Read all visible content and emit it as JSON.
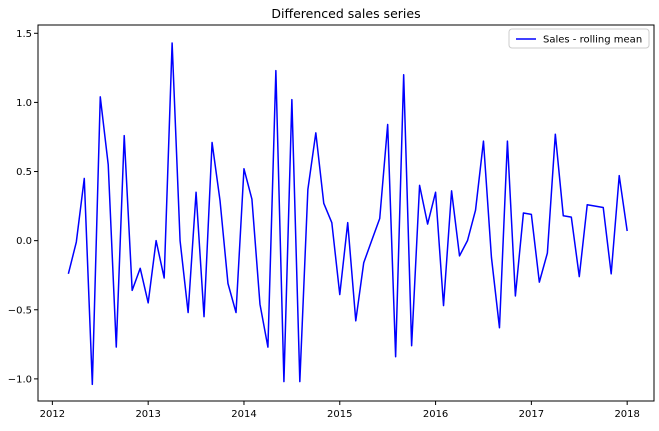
{
  "chart_data": {
    "type": "line",
    "title": "Differenced sales series",
    "xlabel": "",
    "ylabel": "",
    "xlim": [
      2011.85,
      2018.28
    ],
    "ylim": [
      -1.16,
      1.56
    ],
    "x_ticks": [
      2012,
      2013,
      2014,
      2015,
      2016,
      2017,
      2018
    ],
    "x_tick_labels": [
      "2012",
      "2013",
      "2014",
      "2015",
      "2016",
      "2017",
      "2018"
    ],
    "y_ticks": [
      -1.0,
      -0.5,
      0.0,
      0.5,
      1.0,
      1.5
    ],
    "y_tick_labels": [
      "−1.0",
      "−0.5",
      "0.0",
      "0.5",
      "1.0",
      "1.5"
    ],
    "grid": false,
    "legend": {
      "position": "top-right",
      "entries": [
        "Sales - rolling mean"
      ]
    },
    "series": [
      {
        "name": "Sales - rolling mean",
        "color": "#0000ff",
        "x": [
          2012.167,
          2012.25,
          2012.333,
          2012.417,
          2012.5,
          2012.583,
          2012.667,
          2012.75,
          2012.833,
          2012.917,
          2013.0,
          2013.083,
          2013.167,
          2013.25,
          2013.333,
          2013.417,
          2013.5,
          2013.583,
          2013.667,
          2013.75,
          2013.833,
          2013.917,
          2014.0,
          2014.083,
          2014.167,
          2014.25,
          2014.333,
          2014.417,
          2014.5,
          2014.583,
          2014.667,
          2014.75,
          2014.833,
          2014.917,
          2015.0,
          2015.083,
          2015.167,
          2015.25,
          2015.333,
          2015.417,
          2015.5,
          2015.583,
          2015.667,
          2015.75,
          2015.833,
          2015.917,
          2016.0,
          2016.083,
          2016.167,
          2016.25,
          2016.333,
          2016.417,
          2016.5,
          2016.583,
          2016.667,
          2016.75,
          2016.833,
          2016.917,
          2017.0,
          2017.083,
          2017.167,
          2017.25,
          2017.333,
          2017.417,
          2017.5,
          2017.583,
          2017.667,
          2017.75,
          2017.833,
          2017.917,
          2018.0
        ],
        "y": [
          -0.24,
          -0.01,
          0.45,
          -1.04,
          1.04,
          0.55,
          -0.77,
          0.76,
          -0.36,
          -0.2,
          -0.45,
          0.0,
          -0.27,
          1.43,
          0.0,
          -0.52,
          0.35,
          -0.55,
          0.71,
          0.29,
          -0.31,
          -0.52,
          0.52,
          0.3,
          -0.46,
          -0.77,
          1.23,
          -1.02,
          1.02,
          -1.02,
          0.37,
          0.78,
          0.27,
          0.13,
          -0.39,
          0.13,
          -0.58,
          -0.16,
          0.0,
          0.16,
          0.84,
          -0.84,
          1.2,
          -0.76,
          0.4,
          0.12,
          0.35,
          -0.47,
          0.36,
          -0.11,
          0.0,
          0.22,
          0.72,
          -0.12,
          -0.63,
          0.72,
          -0.4,
          0.2,
          0.19,
          -0.3,
          -0.09,
          0.77,
          0.18,
          0.17,
          -0.26,
          0.26,
          0.25,
          0.24,
          -0.24,
          0.47,
          0.07
        ]
      }
    ]
  }
}
